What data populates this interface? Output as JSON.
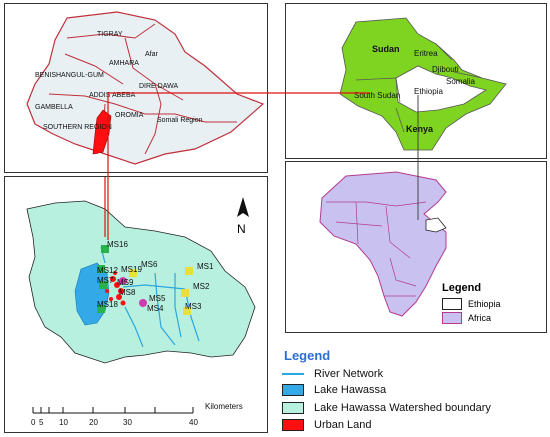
{
  "ethiopia_map": {
    "regions": [
      "TIGRAY",
      "Afar",
      "AMHARA",
      "BENISHANGUL-GUM",
      "DIRE DAWA",
      "ADDIS ABEBA",
      "GAMBELLA",
      "OROMIA",
      "SOUTHERN REGION",
      "Somali Region"
    ]
  },
  "horn_map": {
    "countries": [
      "Sudan",
      "Eritrea",
      "Djibouti",
      "Somalia",
      "Ethiopia",
      "South Sudan",
      "Kenya"
    ]
  },
  "africa_map": {
    "legend_title": "Legend",
    "legend_items": [
      {
        "label": "Ethiopia",
        "color": "#ffffff"
      },
      {
        "label": "Africa",
        "color": "#c9c2f0"
      }
    ]
  },
  "watershed_map": {
    "north_label": "N",
    "stations": [
      "MS16",
      "MS12",
      "MS7",
      "MS19",
      "MS6",
      "MS1",
      "MS9",
      "MS8",
      "MS2",
      "MS18",
      "MS5",
      "MS3",
      "MS4"
    ],
    "scale_label": "Kilometers",
    "scale_ticks": [
      "0",
      "5",
      "10",
      "20",
      "30",
      "40"
    ]
  },
  "legend": {
    "title": "Legend",
    "items": [
      {
        "label": "River Network",
        "color": "#2aa6e0",
        "kind": "line"
      },
      {
        "label": "Lake Hawassa",
        "color": "#33a9e8",
        "kind": "fill"
      },
      {
        "label": "Lake Hawassa Watershed boundary",
        "color": "#b8f0e0",
        "kind": "fill"
      },
      {
        "label": "Urban Land",
        "color": "#ff1010",
        "kind": "fill"
      }
    ]
  },
  "colors": {
    "ethiopia_fill": "#e8f0f4",
    "region_border": "#c0303a",
    "horn_fill": "#7fd321",
    "africa_fill": "#c9c2f0",
    "africa_border": "#b33a8c",
    "connector": "#d11",
    "urban": "#ff1010",
    "lake": "#33a9e8",
    "watershed": "#b8f0e0",
    "river": "#2aa6e0"
  }
}
